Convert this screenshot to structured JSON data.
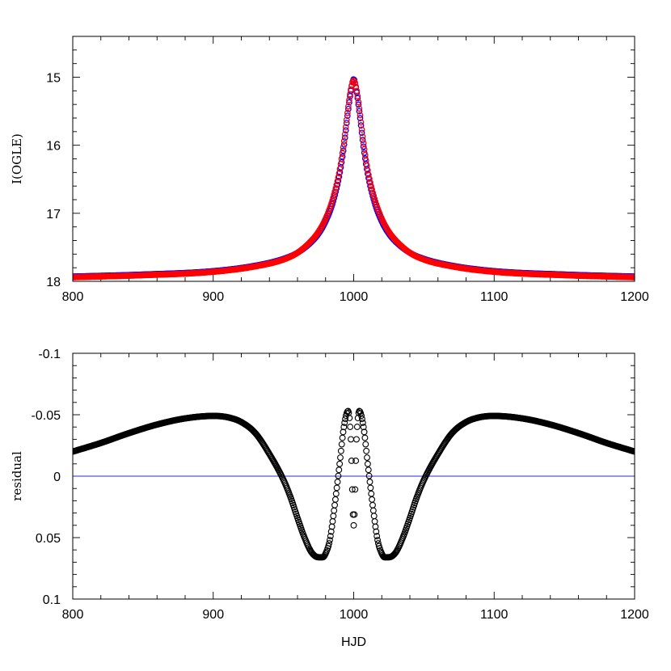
{
  "chart_data": [
    {
      "type": "line",
      "title": "",
      "xlabel": "",
      "ylabel": "I(OGLE)",
      "xlim": [
        800,
        1200
      ],
      "ylim": [
        18,
        14.4
      ],
      "y_inverted": true,
      "x_ticks": [
        "800",
        "900",
        "1000",
        "1100",
        "1200"
      ],
      "y_ticks": [
        "15",
        "16",
        "17",
        "18"
      ],
      "grid": false,
      "legend": "none",
      "series": [
        {
          "color": "#0000ff",
          "marker": "open-circle",
          "x": [
            800,
            850,
            900,
            930,
            950,
            960,
            970,
            975,
            980,
            985,
            990,
            993,
            996,
            998,
            1000,
            1002,
            1004,
            1007,
            1010,
            1015,
            1020,
            1025,
            1030,
            1040,
            1050,
            1070,
            1100,
            1150,
            1200
          ],
          "y": [
            17.93,
            17.9,
            17.85,
            17.77,
            17.67,
            17.58,
            17.42,
            17.3,
            17.12,
            16.85,
            16.42,
            16.02,
            15.5,
            15.2,
            15.03,
            15.2,
            15.5,
            16.02,
            16.42,
            16.85,
            17.12,
            17.3,
            17.42,
            17.58,
            17.67,
            17.77,
            17.85,
            17.9,
            17.93
          ]
        },
        {
          "color": "#ff0000",
          "marker": "open-circle",
          "x": [
            800,
            850,
            900,
            930,
            950,
            960,
            970,
            975,
            980,
            985,
            990,
            993,
            996,
            998,
            1000,
            1002,
            1004,
            1007,
            1010,
            1015,
            1020,
            1025,
            1030,
            1040,
            1050,
            1070,
            1100,
            1150,
            1200
          ],
          "y": [
            17.94,
            17.91,
            17.86,
            17.78,
            17.68,
            17.58,
            17.4,
            17.27,
            17.08,
            16.8,
            16.37,
            15.97,
            15.46,
            15.18,
            15.05,
            15.18,
            15.46,
            15.97,
            16.37,
            16.8,
            17.08,
            17.27,
            17.4,
            17.58,
            17.68,
            17.78,
            17.86,
            17.91,
            17.94
          ]
        }
      ]
    },
    {
      "type": "scatter",
      "title": "",
      "xlabel": "HJD",
      "ylabel": "residual",
      "xlim": [
        800,
        1200
      ],
      "ylim": [
        0.1,
        -0.1
      ],
      "y_inverted": true,
      "x_ticks": [
        "800",
        "900",
        "1000",
        "1100",
        "1200"
      ],
      "y_ticks": [
        "-0.1",
        "-0.05",
        "0",
        "0.05",
        "0.1"
      ],
      "grid": false,
      "legend": "none",
      "zero_line": {
        "y": 0,
        "color": "#2b2bcc"
      },
      "series": [
        {
          "color": "#000000",
          "marker": "open-circle",
          "x": [
            800,
            820,
            840,
            860,
            880,
            900,
            910,
            920,
            930,
            940,
            950,
            955,
            960,
            965,
            970,
            975,
            978,
            980,
            983,
            986,
            990,
            993,
            996,
            998,
            1000,
            1002,
            1004,
            1007,
            1010,
            1014,
            1017,
            1020,
            1022,
            1025,
            1030,
            1035,
            1040,
            1045,
            1050,
            1060,
            1070,
            1080,
            1090,
            1100,
            1120,
            1140,
            1160,
            1180,
            1200
          ],
          "y": [
            -0.02,
            -0.027,
            -0.035,
            -0.042,
            -0.047,
            -0.049,
            -0.048,
            -0.044,
            -0.035,
            -0.018,
            0.003,
            0.017,
            0.034,
            0.05,
            0.062,
            0.066,
            0.066,
            0.063,
            0.052,
            0.028,
            -0.01,
            -0.04,
            -0.053,
            -0.03,
            0.04,
            -0.03,
            -0.053,
            -0.04,
            -0.01,
            0.028,
            0.052,
            0.063,
            0.066,
            0.066,
            0.062,
            0.05,
            0.034,
            0.017,
            0.003,
            -0.018,
            -0.035,
            -0.044,
            -0.048,
            -0.049,
            -0.047,
            -0.042,
            -0.035,
            -0.027,
            -0.02
          ]
        }
      ]
    }
  ]
}
